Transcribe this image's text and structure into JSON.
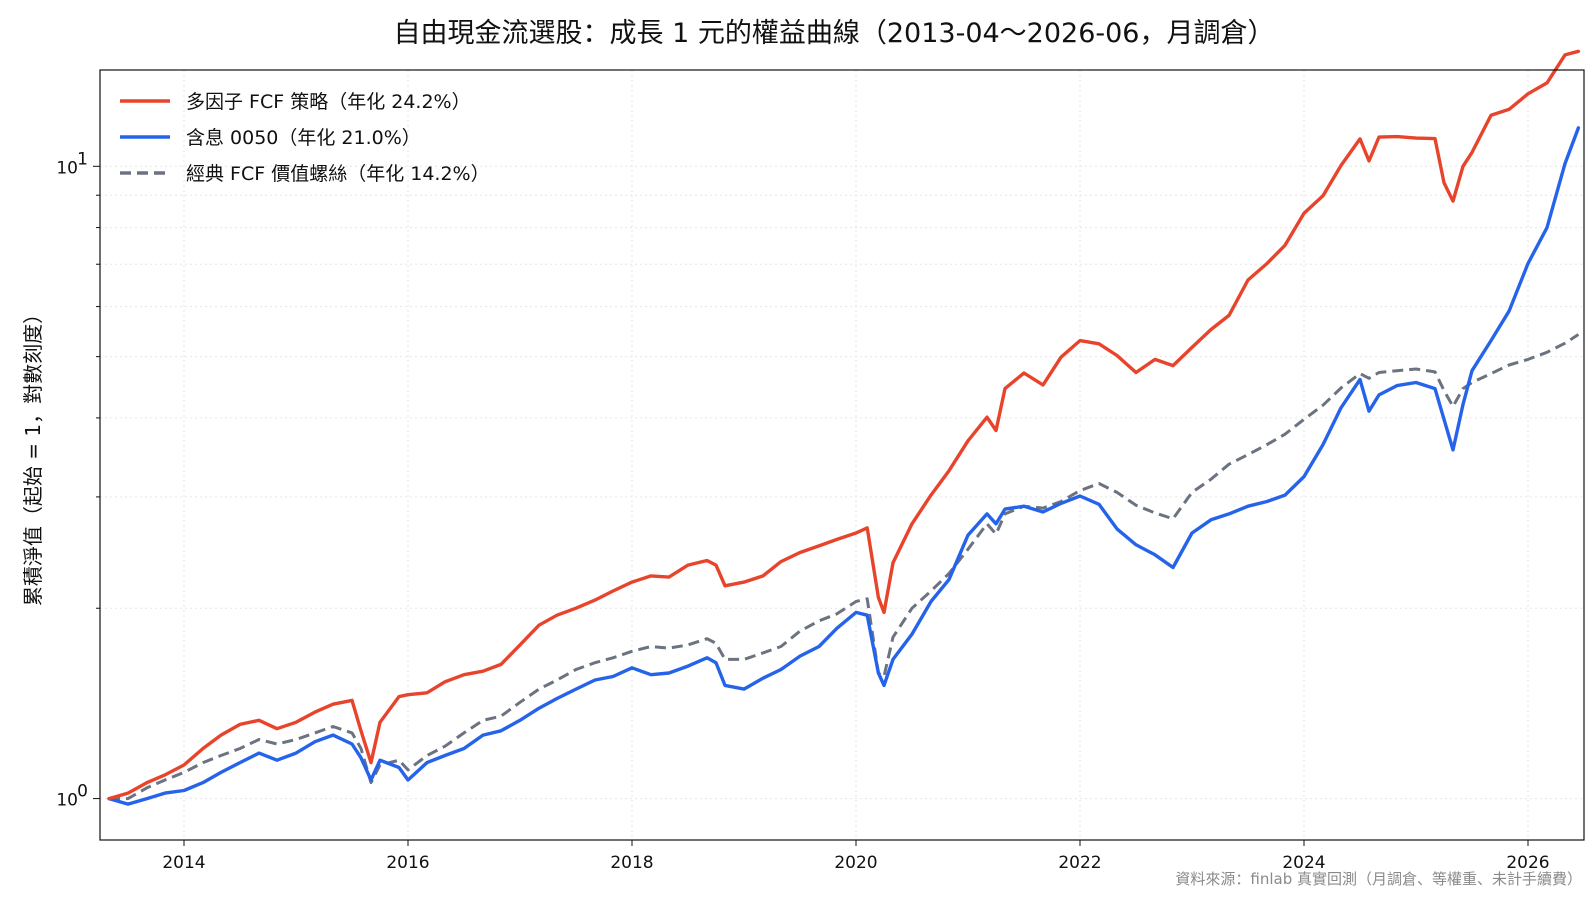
{
  "chart_data": {
    "type": "line",
    "title": "自由現金流選股：成長 1 元的權益曲線（2013-04～2026-06，月調倉）",
    "xlabel": "",
    "ylabel": "累積淨值（起始 = 1，對數刻度）",
    "yscale": "log",
    "xlim": [
      2013.25,
      2026.5
    ],
    "ylim": [
      0.86,
      14.2
    ],
    "x_ticks": [
      2014,
      2016,
      2018,
      2020,
      2022,
      2024,
      2026
    ],
    "x_tick_labels": [
      "2014",
      "2016",
      "2018",
      "2020",
      "2022",
      "2024",
      "2026"
    ],
    "y_ticks": [
      1,
      10
    ],
    "y_tick_labels": [
      {
        "base": "10",
        "exp": "0"
      },
      {
        "base": "10",
        "exp": "1"
      }
    ],
    "grid": true,
    "legend_position": "top-left",
    "source_note": "資料來源：finlab 真實回測（月調倉、等權重、未計手續費）",
    "series": [
      {
        "name": "多因子 FCF 策略（年化 24.2%）",
        "color": "#e8442c",
        "dash": "solid",
        "points": [
          [
            2013.33,
            1.0
          ],
          [
            2013.5,
            1.02
          ],
          [
            2013.67,
            1.06
          ],
          [
            2013.83,
            1.09
          ],
          [
            2014.0,
            1.13
          ],
          [
            2014.17,
            1.2
          ],
          [
            2014.33,
            1.26
          ],
          [
            2014.5,
            1.31
          ],
          [
            2014.67,
            1.33
          ],
          [
            2014.83,
            1.29
          ],
          [
            2015.0,
            1.32
          ],
          [
            2015.17,
            1.37
          ],
          [
            2015.33,
            1.41
          ],
          [
            2015.5,
            1.43
          ],
          [
            2015.58,
            1.28
          ],
          [
            2015.67,
            1.14
          ],
          [
            2015.75,
            1.32
          ],
          [
            2015.92,
            1.45
          ],
          [
            2016.0,
            1.46
          ],
          [
            2016.17,
            1.47
          ],
          [
            2016.33,
            1.53
          ],
          [
            2016.5,
            1.57
          ],
          [
            2016.67,
            1.59
          ],
          [
            2016.83,
            1.63
          ],
          [
            2017.0,
            1.75
          ],
          [
            2017.17,
            1.88
          ],
          [
            2017.33,
            1.95
          ],
          [
            2017.5,
            2.0
          ],
          [
            2017.67,
            2.06
          ],
          [
            2017.83,
            2.13
          ],
          [
            2018.0,
            2.2
          ],
          [
            2018.17,
            2.25
          ],
          [
            2018.33,
            2.24
          ],
          [
            2018.5,
            2.34
          ],
          [
            2018.67,
            2.38
          ],
          [
            2018.75,
            2.34
          ],
          [
            2018.83,
            2.17
          ],
          [
            2019.0,
            2.2
          ],
          [
            2019.17,
            2.25
          ],
          [
            2019.33,
            2.37
          ],
          [
            2019.5,
            2.45
          ],
          [
            2019.67,
            2.51
          ],
          [
            2019.83,
            2.57
          ],
          [
            2020.0,
            2.63
          ],
          [
            2020.1,
            2.68
          ],
          [
            2020.2,
            2.08
          ],
          [
            2020.25,
            1.97
          ],
          [
            2020.33,
            2.36
          ],
          [
            2020.5,
            2.72
          ],
          [
            2020.67,
            3.02
          ],
          [
            2020.83,
            3.3
          ],
          [
            2021.0,
            3.68
          ],
          [
            2021.17,
            4.01
          ],
          [
            2021.25,
            3.82
          ],
          [
            2021.33,
            4.45
          ],
          [
            2021.5,
            4.71
          ],
          [
            2021.67,
            4.51
          ],
          [
            2021.83,
            4.99
          ],
          [
            2022.0,
            5.3
          ],
          [
            2022.17,
            5.24
          ],
          [
            2022.33,
            5.02
          ],
          [
            2022.5,
            4.72
          ],
          [
            2022.67,
            4.95
          ],
          [
            2022.83,
            4.84
          ],
          [
            2023.0,
            5.17
          ],
          [
            2023.17,
            5.52
          ],
          [
            2023.33,
            5.81
          ],
          [
            2023.5,
            6.61
          ],
          [
            2023.67,
            7.02
          ],
          [
            2023.83,
            7.5
          ],
          [
            2024.0,
            8.43
          ],
          [
            2024.17,
            8.98
          ],
          [
            2024.33,
            10.03
          ],
          [
            2024.5,
            11.05
          ],
          [
            2024.58,
            10.2
          ],
          [
            2024.67,
            11.12
          ],
          [
            2024.83,
            11.14
          ],
          [
            2025.0,
            11.08
          ],
          [
            2025.17,
            11.06
          ],
          [
            2025.25,
            9.42
          ],
          [
            2025.33,
            8.81
          ],
          [
            2025.42,
            10.0
          ],
          [
            2025.5,
            10.52
          ],
          [
            2025.67,
            12.04
          ],
          [
            2025.83,
            12.3
          ],
          [
            2026.0,
            13.02
          ],
          [
            2026.17,
            13.55
          ],
          [
            2026.33,
            15.0
          ],
          [
            2026.45,
            15.2
          ]
        ]
      },
      {
        "name": "含息 0050（年化 21.0%）",
        "color": "#2563eb",
        "dash": "solid",
        "points": [
          [
            2013.33,
            1.0
          ],
          [
            2013.5,
            0.98
          ],
          [
            2013.67,
            1.0
          ],
          [
            2013.83,
            1.02
          ],
          [
            2014.0,
            1.03
          ],
          [
            2014.17,
            1.06
          ],
          [
            2014.33,
            1.1
          ],
          [
            2014.5,
            1.14
          ],
          [
            2014.67,
            1.18
          ],
          [
            2014.83,
            1.15
          ],
          [
            2015.0,
            1.18
          ],
          [
            2015.17,
            1.23
          ],
          [
            2015.33,
            1.26
          ],
          [
            2015.5,
            1.22
          ],
          [
            2015.58,
            1.16
          ],
          [
            2015.67,
            1.07
          ],
          [
            2015.75,
            1.15
          ],
          [
            2015.92,
            1.12
          ],
          [
            2016.0,
            1.07
          ],
          [
            2016.17,
            1.14
          ],
          [
            2016.33,
            1.17
          ],
          [
            2016.5,
            1.2
          ],
          [
            2016.67,
            1.26
          ],
          [
            2016.83,
            1.28
          ],
          [
            2017.0,
            1.33
          ],
          [
            2017.17,
            1.39
          ],
          [
            2017.33,
            1.44
          ],
          [
            2017.5,
            1.49
          ],
          [
            2017.67,
            1.54
          ],
          [
            2017.83,
            1.56
          ],
          [
            2018.0,
            1.61
          ],
          [
            2018.17,
            1.57
          ],
          [
            2018.33,
            1.58
          ],
          [
            2018.5,
            1.62
          ],
          [
            2018.67,
            1.67
          ],
          [
            2018.75,
            1.64
          ],
          [
            2018.83,
            1.51
          ],
          [
            2019.0,
            1.49
          ],
          [
            2019.17,
            1.55
          ],
          [
            2019.33,
            1.6
          ],
          [
            2019.5,
            1.68
          ],
          [
            2019.67,
            1.74
          ],
          [
            2019.83,
            1.86
          ],
          [
            2020.0,
            1.97
          ],
          [
            2020.1,
            1.95
          ],
          [
            2020.2,
            1.58
          ],
          [
            2020.25,
            1.51
          ],
          [
            2020.33,
            1.66
          ],
          [
            2020.5,
            1.82
          ],
          [
            2020.67,
            2.05
          ],
          [
            2020.83,
            2.22
          ],
          [
            2021.0,
            2.61
          ],
          [
            2021.17,
            2.82
          ],
          [
            2021.25,
            2.72
          ],
          [
            2021.33,
            2.87
          ],
          [
            2021.5,
            2.9
          ],
          [
            2021.67,
            2.84
          ],
          [
            2021.83,
            2.93
          ],
          [
            2022.0,
            3.01
          ],
          [
            2022.17,
            2.92
          ],
          [
            2022.33,
            2.67
          ],
          [
            2022.5,
            2.52
          ],
          [
            2022.67,
            2.43
          ],
          [
            2022.83,
            2.32
          ],
          [
            2023.0,
            2.63
          ],
          [
            2023.17,
            2.76
          ],
          [
            2023.33,
            2.82
          ],
          [
            2023.5,
            2.9
          ],
          [
            2023.67,
            2.95
          ],
          [
            2023.83,
            3.02
          ],
          [
            2024.0,
            3.23
          ],
          [
            2024.17,
            3.63
          ],
          [
            2024.33,
            4.15
          ],
          [
            2024.5,
            4.6
          ],
          [
            2024.58,
            4.1
          ],
          [
            2024.67,
            4.35
          ],
          [
            2024.83,
            4.5
          ],
          [
            2025.0,
            4.55
          ],
          [
            2025.17,
            4.45
          ],
          [
            2025.25,
            3.98
          ],
          [
            2025.33,
            3.56
          ],
          [
            2025.42,
            4.2
          ],
          [
            2025.5,
            4.75
          ],
          [
            2025.67,
            5.3
          ],
          [
            2025.83,
            5.9
          ],
          [
            2026.0,
            7.02
          ],
          [
            2026.17,
            8.0
          ],
          [
            2026.33,
            10.1
          ],
          [
            2026.45,
            11.5
          ]
        ]
      },
      {
        "name": "經典 FCF 價值螺絲（年化 14.2%）",
        "color": "#6b7280",
        "dash": "dashed",
        "points": [
          [
            2013.33,
            1.0
          ],
          [
            2013.5,
            1.0
          ],
          [
            2013.67,
            1.04
          ],
          [
            2013.83,
            1.07
          ],
          [
            2014.0,
            1.1
          ],
          [
            2014.17,
            1.14
          ],
          [
            2014.33,
            1.17
          ],
          [
            2014.5,
            1.2
          ],
          [
            2014.67,
            1.24
          ],
          [
            2014.83,
            1.22
          ],
          [
            2015.0,
            1.24
          ],
          [
            2015.17,
            1.27
          ],
          [
            2015.33,
            1.3
          ],
          [
            2015.5,
            1.27
          ],
          [
            2015.58,
            1.2
          ],
          [
            2015.67,
            1.06
          ],
          [
            2015.75,
            1.13
          ],
          [
            2015.92,
            1.15
          ],
          [
            2016.0,
            1.11
          ],
          [
            2016.17,
            1.17
          ],
          [
            2016.33,
            1.21
          ],
          [
            2016.5,
            1.27
          ],
          [
            2016.67,
            1.33
          ],
          [
            2016.83,
            1.35
          ],
          [
            2017.0,
            1.42
          ],
          [
            2017.17,
            1.49
          ],
          [
            2017.33,
            1.54
          ],
          [
            2017.5,
            1.6
          ],
          [
            2017.67,
            1.64
          ],
          [
            2017.83,
            1.67
          ],
          [
            2018.0,
            1.71
          ],
          [
            2018.17,
            1.74
          ],
          [
            2018.33,
            1.73
          ],
          [
            2018.5,
            1.75
          ],
          [
            2018.67,
            1.79
          ],
          [
            2018.75,
            1.76
          ],
          [
            2018.83,
            1.66
          ],
          [
            2019.0,
            1.66
          ],
          [
            2019.17,
            1.7
          ],
          [
            2019.33,
            1.74
          ],
          [
            2019.5,
            1.84
          ],
          [
            2019.67,
            1.91
          ],
          [
            2019.83,
            1.96
          ],
          [
            2020.0,
            2.05
          ],
          [
            2020.1,
            2.07
          ],
          [
            2020.2,
            1.58
          ],
          [
            2020.25,
            1.56
          ],
          [
            2020.33,
            1.8
          ],
          [
            2020.5,
            2.0
          ],
          [
            2020.67,
            2.13
          ],
          [
            2020.83,
            2.27
          ],
          [
            2021.0,
            2.48
          ],
          [
            2021.17,
            2.72
          ],
          [
            2021.25,
            2.62
          ],
          [
            2021.33,
            2.82
          ],
          [
            2021.5,
            2.9
          ],
          [
            2021.67,
            2.88
          ],
          [
            2021.83,
            2.95
          ],
          [
            2022.0,
            3.07
          ],
          [
            2022.17,
            3.15
          ],
          [
            2022.33,
            3.05
          ],
          [
            2022.5,
            2.91
          ],
          [
            2022.67,
            2.83
          ],
          [
            2022.83,
            2.77
          ],
          [
            2023.0,
            3.05
          ],
          [
            2023.17,
            3.2
          ],
          [
            2023.33,
            3.38
          ],
          [
            2023.5,
            3.5
          ],
          [
            2023.67,
            3.63
          ],
          [
            2023.83,
            3.77
          ],
          [
            2024.0,
            3.98
          ],
          [
            2024.17,
            4.19
          ],
          [
            2024.33,
            4.46
          ],
          [
            2024.5,
            4.7
          ],
          [
            2024.58,
            4.62
          ],
          [
            2024.67,
            4.72
          ],
          [
            2024.83,
            4.75
          ],
          [
            2025.0,
            4.78
          ],
          [
            2025.17,
            4.73
          ],
          [
            2025.25,
            4.42
          ],
          [
            2025.33,
            4.17
          ],
          [
            2025.42,
            4.45
          ],
          [
            2025.5,
            4.55
          ],
          [
            2025.67,
            4.7
          ],
          [
            2025.83,
            4.85
          ],
          [
            2026.0,
            4.95
          ],
          [
            2026.17,
            5.08
          ],
          [
            2026.33,
            5.25
          ],
          [
            2026.45,
            5.42
          ]
        ]
      }
    ]
  }
}
